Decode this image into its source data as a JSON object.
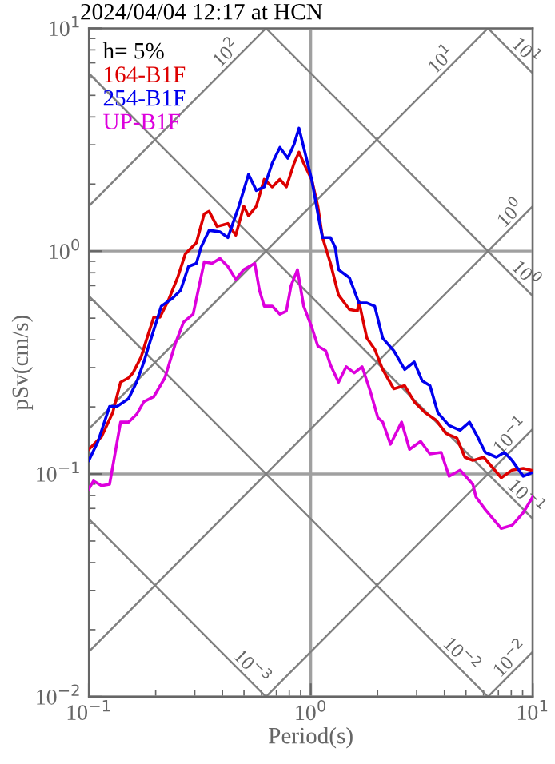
{
  "chart_data": {
    "type": "line",
    "title": "2024/04/04 12:17 at HCN",
    "xlabel": "Period(s)",
    "ylabel": "pSv(cm/s)",
    "legend_title": "h= 5%",
    "legend": "top left",
    "log": "xy",
    "grid": true,
    "marker": "none",
    "line_style": "solid",
    "xlim": [
      0.1,
      10
    ],
    "ylim": [
      0.01,
      10
    ],
    "xticks": [
      {
        "value": 0.1,
        "label": "10$^{−1}$"
      },
      {
        "value": 1,
        "label": "10$^{0}$"
      },
      {
        "value": 10,
        "label": "10$^{1}$"
      }
    ],
    "yticks": [
      {
        "value": 0.01,
        "label": "10$^{−2}$"
      },
      {
        "value": 0.1,
        "label": "10$^{−1}$"
      },
      {
        "value": 1,
        "label": "10$^{0}$"
      },
      {
        "value": 10,
        "label": "10$^{1}$"
      }
    ],
    "series": [
      {
        "color": "#808080",
        "x": [
          0.1,
          0.6283
        ],
        "values": [
          0.06283,
          0.01
        ]
      },
      {
        "color": "#808080",
        "x": [
          0.1,
          6.283
        ],
        "values": [
          0.6283,
          0.01
        ]
      },
      {
        "color": "#808080",
        "x": [
          0.1,
          10
        ],
        "values": [
          6.283,
          0.06283
        ]
      },
      {
        "color": "#808080",
        "x": [
          0.6283,
          10
        ],
        "values": [
          10,
          0.6283
        ]
      },
      {
        "color": "#808080",
        "x": [
          6.283,
          10
        ],
        "values": [
          10,
          6.283
        ]
      },
      {
        "color": "#808080",
        "x": [
          0.1,
          0.6283
        ],
        "values": [
          1.592,
          10
        ]
      },
      {
        "color": "#808080",
        "x": [
          0.1,
          6.283
        ],
        "values": [
          0.1592,
          10
        ]
      },
      {
        "color": "#808080",
        "x": [
          0.1,
          10
        ],
        "values": [
          0.01592,
          1.592
        ]
      },
      {
        "color": "#808080",
        "x": [
          0.6283,
          10
        ],
        "values": [
          0.01,
          0.1592
        ]
      },
      {
        "color": "#808080",
        "x": [
          6.283,
          10
        ],
        "values": [
          0.01,
          0.01592
        ]
      },
      {
        "name": "164-B1F",
        "color": "#dd0000",
        "x": [
          0.1,
          0.114,
          0.128,
          0.139,
          0.151,
          0.158,
          0.172,
          0.18,
          0.196,
          0.209,
          0.227,
          0.251,
          0.272,
          0.305,
          0.331,
          0.348,
          0.378,
          0.423,
          0.459,
          0.499,
          0.524,
          0.568,
          0.617,
          0.67,
          0.726,
          0.776,
          0.841,
          0.885,
          0.929,
          1.009,
          1.076,
          1.13,
          1.227,
          1.334,
          1.493,
          1.622,
          1.648,
          1.79,
          1.941,
          2.109,
          2.366,
          2.649,
          2.924,
          3.281,
          3.681,
          4.064,
          4.55,
          4.943,
          5.37,
          6.012,
          6.637,
          7.211,
          8.072,
          9.057,
          9.84
        ],
        "values": [
          0.129,
          0.147,
          0.188,
          0.258,
          0.27,
          0.284,
          0.335,
          0.388,
          0.505,
          0.505,
          0.594,
          0.76,
          0.972,
          1.09,
          1.47,
          1.51,
          1.29,
          1.33,
          1.18,
          1.59,
          1.44,
          1.59,
          2.1,
          1.94,
          2.1,
          1.94,
          2.48,
          2.78,
          2.48,
          2.1,
          1.59,
          1.15,
          0.881,
          0.635,
          0.547,
          0.538,
          0.594,
          0.407,
          0.363,
          0.294,
          0.241,
          0.249,
          0.211,
          0.188,
          0.174,
          0.152,
          0.145,
          0.119,
          0.115,
          0.119,
          0.106,
          0.0962,
          0.104,
          0.106,
          0.104
        ]
      },
      {
        "name": "254-B1F",
        "color": "#0000ee",
        "x": [
          0.1,
          0.11,
          0.124,
          0.134,
          0.151,
          0.164,
          0.177,
          0.186,
          0.212,
          0.238,
          0.259,
          0.281,
          0.305,
          0.32,
          0.348,
          0.39,
          0.423,
          0.474,
          0.524,
          0.568,
          0.617,
          0.67,
          0.726,
          0.788,
          0.841,
          0.885,
          0.929,
          1.009,
          1.094,
          1.13,
          1.227,
          1.289,
          1.334,
          1.493,
          1.648,
          1.79,
          1.941,
          2.109,
          2.366,
          2.649,
          2.924,
          3.175,
          3.443,
          3.74,
          4.198,
          4.707,
          5.19,
          5.636,
          6.11,
          6.855,
          7.447,
          8.072,
          9.057,
          9.84
        ],
        "values": [
          0.115,
          0.14,
          0.201,
          0.201,
          0.218,
          0.258,
          0.318,
          0.375,
          0.566,
          0.614,
          0.667,
          0.853,
          0.881,
          1.04,
          1.24,
          1.22,
          1.15,
          1.59,
          2.21,
          1.87,
          1.94,
          2.48,
          2.92,
          2.61,
          3.02,
          3.56,
          2.92,
          2.1,
          1.35,
          1.15,
          1.15,
          1.04,
          0.826,
          0.76,
          0.585,
          0.585,
          0.566,
          0.407,
          0.357,
          0.294,
          0.318,
          0.262,
          0.249,
          0.188,
          0.165,
          0.157,
          0.171,
          0.147,
          0.125,
          0.119,
          0.125,
          0.115,
          0.0977,
          0.101
        ]
      },
      {
        "name": "UP-B1F",
        "color": "#dd00dd",
        "x": [
          0.1,
          0.105,
          0.114,
          0.124,
          0.139,
          0.151,
          0.164,
          0.177,
          0.196,
          0.22,
          0.246,
          0.267,
          0.295,
          0.331,
          0.359,
          0.39,
          0.423,
          0.459,
          0.499,
          0.559,
          0.587,
          0.617,
          0.67,
          0.726,
          0.776,
          0.815,
          0.871,
          0.929,
          1.009,
          1.076,
          1.169,
          1.227,
          1.334,
          1.445,
          1.57,
          1.703,
          1.849,
          2.006,
          2.109,
          2.287,
          2.566,
          2.786,
          3.126,
          3.443,
          3.866,
          4.198,
          4.707,
          5.37,
          5.546,
          6.11,
          7.211,
          8.072,
          9.057,
          10
        ],
        "values": [
          0.0857,
          0.0931,
          0.0885,
          0.0899,
          0.171,
          0.171,
          0.185,
          0.211,
          0.222,
          0.27,
          0.388,
          0.48,
          0.521,
          0.895,
          0.881,
          0.927,
          0.853,
          0.748,
          0.826,
          0.881,
          0.667,
          0.566,
          0.566,
          0.521,
          0.538,
          0.7,
          0.826,
          0.566,
          0.457,
          0.375,
          0.357,
          0.308,
          0.258,
          0.303,
          0.284,
          0.303,
          0.237,
          0.179,
          0.171,
          0.136,
          0.171,
          0.129,
          0.14,
          0.123,
          0.125,
          0.0977,
          0.104,
          0.0899,
          0.0789,
          0.0692,
          0.0569,
          0.0588,
          0.067,
          0.0789
        ]
      }
    ],
    "annotations": [
      {
        "text": "10$^{2}$",
        "x": 0.45,
        "y": 7.16
      },
      {
        "text": "10$^{1}$",
        "x": 4.2,
        "y": 6.69
      },
      {
        "text": "10$^{1}$",
        "x": 8.6,
        "y": 7.31
      },
      {
        "text": "10$^{0}$",
        "x": 8.6,
        "y": 1.369
      },
      {
        "text": "10$^{0}$",
        "x": 8.6,
        "y": 0.7306
      },
      {
        "text": "10$^{−1}$",
        "x": 8.6,
        "y": 0.1369
      },
      {
        "text": "10$^{−1}$",
        "x": 8.6,
        "y": 0.07306
      },
      {
        "text": "10$^{−2}$",
        "x": 8.6,
        "y": 0.01369
      },
      {
        "text": "10$^{−2}$",
        "x": 4.4,
        "y": 0.01428
      },
      {
        "text": "10$^{−3}$",
        "x": 0.5,
        "y": 0.01257
      }
    ]
  }
}
